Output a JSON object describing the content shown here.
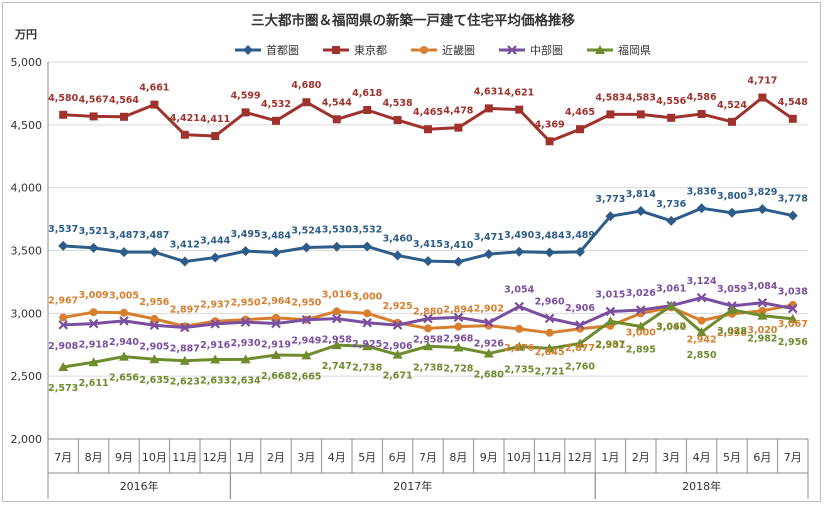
{
  "chart_data": {
    "type": "line",
    "title": "三大都市圏＆福岡県の新築一戸建て住宅平均価格推移",
    "unit_label": "万円",
    "ylim": [
      2000,
      5000
    ],
    "yticks": [
      "2,000",
      "2,500",
      "3,000",
      "3,500",
      "4,000",
      "4,500",
      "5,000"
    ],
    "ytick_values": [
      2000,
      2500,
      3000,
      3500,
      4000,
      4500,
      5000
    ],
    "grid": true,
    "legend_position": "top",
    "categories": [
      "7月",
      "8月",
      "9月",
      "10月",
      "11月",
      "12月",
      "1月",
      "2月",
      "3月",
      "4月",
      "5月",
      "6月",
      "7月",
      "8月",
      "9月",
      "10月",
      "11月",
      "12月",
      "1月",
      "2月",
      "3月",
      "4月",
      "5月",
      "6月",
      "7月"
    ],
    "year_groups": [
      {
        "label": "2016年",
        "start": 0,
        "end": 5
      },
      {
        "label": "2017年",
        "start": 6,
        "end": 17
      },
      {
        "label": "2018年",
        "start": 18,
        "end": 24
      }
    ],
    "series": [
      {
        "name": "首都圏",
        "color": "#2E5C8A",
        "marker": "diamond",
        "values": [
          3537,
          3521,
          3487,
          3487,
          3412,
          3444,
          3495,
          3484,
          3524,
          3530,
          3532,
          3460,
          3415,
          3410,
          3471,
          3490,
          3484,
          3489,
          3773,
          3814,
          3736,
          3836,
          3800,
          3829,
          3778
        ],
        "labels": [
          "3,537",
          "3,521",
          "3,487",
          "3,487",
          "3,412",
          "3,444",
          "3,495",
          "3,484",
          "3,524",
          "3,530",
          "3,532",
          "3,460",
          "3,415",
          "3,410",
          "3,471",
          "3,490",
          "3,484",
          "3,489",
          "3,773",
          "3,814",
          "3,736",
          "3,836",
          "3,800",
          "3,829",
          "3,778"
        ]
      },
      {
        "name": "東京都",
        "color": "#A0322E",
        "marker": "square",
        "values": [
          4580,
          4567,
          4564,
          4661,
          4421,
          4411,
          4599,
          4532,
          4680,
          4544,
          4618,
          4538,
          4465,
          4478,
          4631,
          4621,
          4369,
          4465,
          4583,
          4583,
          4556,
          4586,
          4524,
          4717,
          4548
        ],
        "labels": [
          "4,580",
          "4,567",
          "4,564",
          "4,661",
          "4,421",
          "4,411",
          "4,599",
          "4,532",
          "4,680",
          "4,544",
          "4,618",
          "4,538",
          "4,465",
          "4,478",
          "4,631",
          "4,621",
          "4,369",
          "4,465",
          "4,583",
          "4,583",
          "4,556",
          "4,586",
          "4,524",
          "4,717",
          "4,548"
        ]
      },
      {
        "name": "近畿圏",
        "color": "#D77F2E",
        "marker": "circle",
        "values": [
          2967,
          3009,
          3005,
          2956,
          2897,
          2937,
          2950,
          2964,
          2950,
          3016,
          3000,
          2925,
          2880,
          2894,
          2902,
          2876,
          2845,
          2877,
          2901,
          3000,
          3047,
          2942,
          2996,
          3020,
          3067
        ],
        "labels": [
          "2,967",
          "3,009",
          "3,005",
          "2,956",
          "2,897",
          "2,937",
          "2,950",
          "2,964",
          "2,950",
          "3,016",
          "3,000",
          "2,925",
          "2,880",
          "2,894",
          "2,902",
          "2,876",
          "2,845",
          "2,877",
          "2,901",
          "3,000",
          "3,047",
          "2,942",
          "2,996",
          "3,020",
          "3,067"
        ]
      },
      {
        "name": "中部圏",
        "color": "#7A4FA0",
        "marker": "x",
        "values": [
          2908,
          2918,
          2940,
          2905,
          2887,
          2916,
          2930,
          2919,
          2949,
          2958,
          2925,
          2906,
          2958,
          2968,
          2926,
          3054,
          2960,
          2906,
          3015,
          3026,
          3061,
          3124,
          3059,
          3084,
          3038
        ],
        "labels": [
          "2,908",
          "2,918",
          "2,940",
          "2,905",
          "2,887",
          "2,916",
          "2,930",
          "2,919",
          "2,949",
          "2,958",
          "2,925",
          "2,906",
          "2,958",
          "2,968",
          "2,926",
          "3,054",
          "2,960",
          "2,906",
          "3,015",
          "3,026",
          "3,061",
          "3,124",
          "3,059",
          "3,084",
          "3,038"
        ]
      },
      {
        "name": "福岡県",
        "color": "#6E8B2E",
        "marker": "triangle",
        "values": [
          2573,
          2611,
          2656,
          2635,
          2623,
          2633,
          2634,
          2668,
          2665,
          2747,
          2738,
          2671,
          2738,
          2728,
          2680,
          2735,
          2721,
          2760,
          2937,
          2895,
          3060,
          2850,
          3028,
          2982,
          2956
        ],
        "labels": [
          "2,573",
          "2,611",
          "2,656",
          "2,635",
          "2,623",
          "2,633",
          "2,634",
          "2,668",
          "2,665",
          "2,747",
          "2,738",
          "2,671",
          "2,738",
          "2,728",
          "2,680",
          "2,735",
          "2,721",
          "2,760",
          "2,937",
          "2,895",
          "3,060",
          "2,850",
          "3,028",
          "2,982",
          "2,956"
        ]
      }
    ]
  }
}
